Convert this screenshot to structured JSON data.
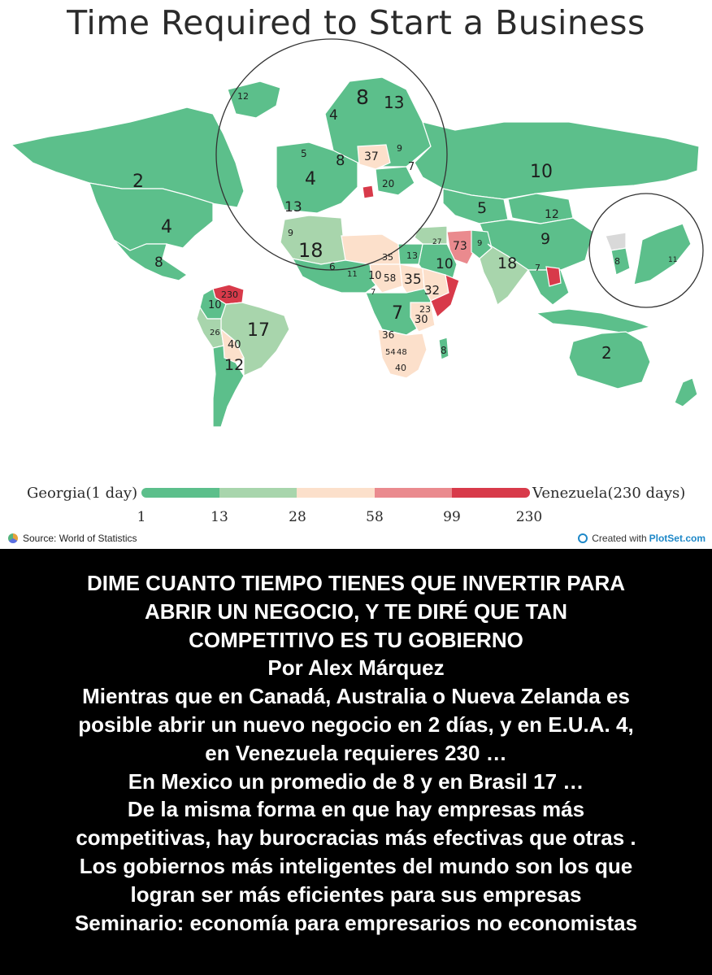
{
  "map": {
    "title": "Time Required to Start a Business",
    "colors": {
      "scale": [
        "#5cbf8b",
        "#a8d5ac",
        "#fce0cb",
        "#ea8a8e",
        "#d83a4a"
      ],
      "ocean": "#ffffff",
      "border": "#ffffff",
      "no_data": "#d9d9d9"
    },
    "labels": {
      "canada": "2",
      "usa": "4",
      "mexico": "8",
      "venezuela": "230",
      "colombia": "10",
      "brazil": "17",
      "peru": "26",
      "bolivia": "40",
      "argentina": "12",
      "greenland": "12",
      "norway": "4",
      "sweden": "8",
      "finland": "13",
      "uk": "5",
      "germany": "8",
      "poland": "37",
      "baltics": "9",
      "belarus": "7",
      "france": "4",
      "ukraine": "20",
      "italy": "13",
      "spain": "9",
      "algeria": "18",
      "libya": "35",
      "egypt": "13",
      "west_africa": "6",
      "nigeria": "11",
      "chad": "10",
      "car": "58",
      "sudan": "35",
      "ethiopia": "32",
      "somalia": "7",
      "drc": "7",
      "tanzania": "23",
      "kenya": "30",
      "angola": "36",
      "zambia": "54",
      "botswana": "48",
      "south_africa": "40",
      "madagascar": "8",
      "russia": "10",
      "kazakhstan": "5",
      "mongolia": "12",
      "china": "9",
      "iran": "73",
      "pakistan": "9",
      "saudi": "10",
      "india": "18",
      "myanmar": "7",
      "korea": "8",
      "japan": "11",
      "australia": "2",
      "middle_east": "27"
    }
  },
  "legend": {
    "min_label": "Georgia(1 day)",
    "max_label": "Venezuela(230 days)",
    "ticks": [
      "1",
      "13",
      "28",
      "58",
      "99",
      "230"
    ]
  },
  "footer": {
    "source": "Source: World of Statistics",
    "credit_prefix": "Created with",
    "credit_brand": "PlotSet.com"
  },
  "caption": {
    "lines": [
      "DIME CUANTO TIEMPO TIENES QUE INVERTIR PARA",
      "ABRIR UN NEGOCIO, Y TE DIRÉ QUE TAN",
      "COMPETITIVO ES TU GOBIERNO",
      "Por Alex Márquez",
      "Mientras que en Canadá,  Australia o Nueva Zelanda es",
      "posible abrir un nuevo negocio en 2 días, y en E.U.A. 4,",
      "en Venezuela requieres 230 …",
      "En Mexico un promedio de 8 y en Brasil 17 …",
      "De la misma forma en que hay empresas más",
      "competitivas, hay burocracias más efectivas que otras .",
      "Los gobiernos más inteligentes del mundo son los que",
      "logran ser más eficientes para sus empresas",
      "Seminario: economía para empresarios no economistas"
    ]
  }
}
